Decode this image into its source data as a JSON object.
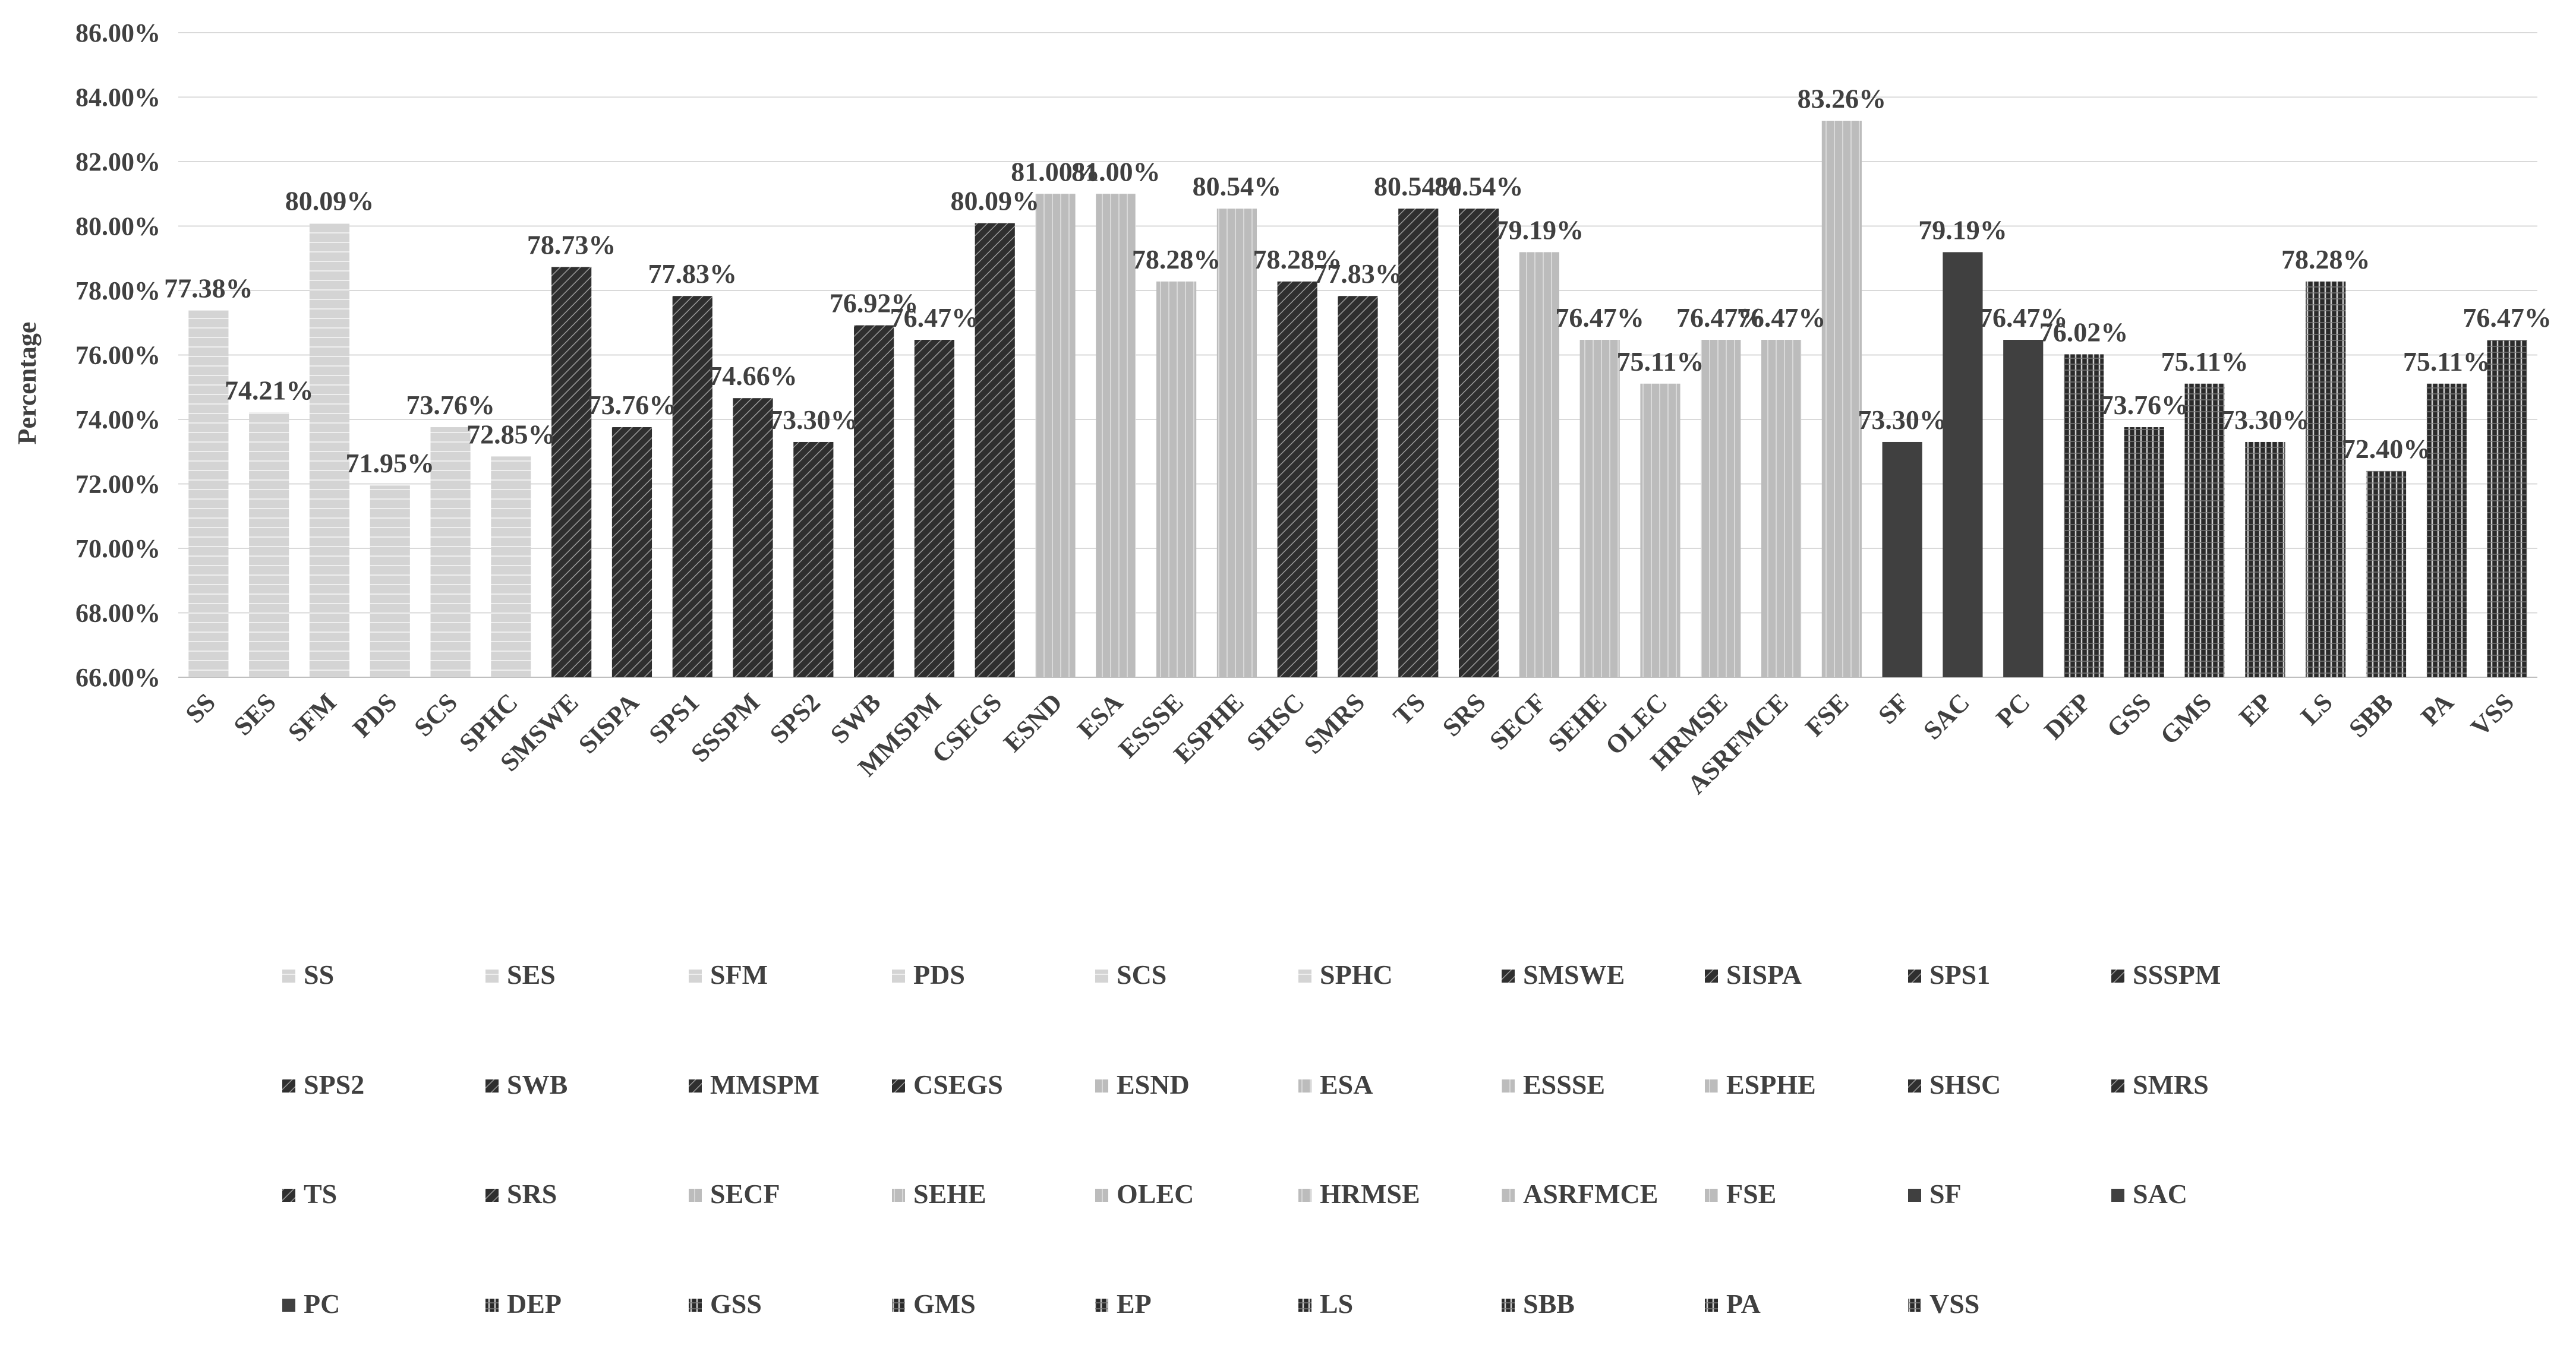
{
  "chart_data": {
    "type": "bar",
    "title": "",
    "xlabel": "",
    "ylabel": "Percentage",
    "ylim": [
      66,
      86
    ],
    "yticks": [
      "66.00%",
      "68.00%",
      "70.00%",
      "72.00%",
      "74.00%",
      "76.00%",
      "78.00%",
      "80.00%",
      "82.00%",
      "84.00%",
      "86.00%"
    ],
    "grid": true,
    "legend_position": "bottom",
    "categories": [
      "SS",
      "SES",
      "SFM",
      "PDS",
      "SCS",
      "SPHC",
      "SMSWE",
      "SISPA",
      "SPS1",
      "SSSPM",
      "SPS2",
      "SWB",
      "MMSPM",
      "CSEGS",
      "ESND",
      "ESA",
      "ESSSE",
      "ESPHE",
      "SHSC",
      "SMRS",
      "TS",
      "SRS",
      "SECF",
      "SEHE",
      "OLEC",
      "HRMSE",
      "ASRFMCE",
      "FSE",
      "SF",
      "SAC",
      "PC",
      "DEP",
      "GSS",
      "GMS",
      "EP",
      "LS",
      "SBB",
      "PA",
      "VSS"
    ],
    "values": [
      77.38,
      74.21,
      80.09,
      71.95,
      73.76,
      72.85,
      78.73,
      73.76,
      77.83,
      74.66,
      73.3,
      76.92,
      76.47,
      80.09,
      81.0,
      81.0,
      78.28,
      80.54,
      78.28,
      77.83,
      80.54,
      80.54,
      79.19,
      76.47,
      75.11,
      76.47,
      76.47,
      83.26,
      73.3,
      79.19,
      76.47,
      76.02,
      73.76,
      75.11,
      73.3,
      78.28,
      72.4,
      75.11,
      76.47
    ],
    "value_labels": [
      "77.38%",
      "74.21%",
      "80.09%",
      "71.95%",
      "73.76%",
      "72.85%",
      "78.73%",
      "73.76%",
      "77.83%",
      "74.66%",
      "73.30%",
      "76.92%",
      "76.47%",
      "80.09%",
      "81.00%",
      "81.00%",
      "78.28%",
      "80.54%",
      "78.28%",
      "77.83%",
      "80.54%",
      "80.54%",
      "79.19%",
      "76.47%",
      "75.11%",
      "76.47%",
      "76.47%",
      "83.26%",
      "73.30%",
      "79.19%",
      "76.47%",
      "76.02%",
      "73.76%",
      "75.11%",
      "73.30%",
      "78.28%",
      "72.40%",
      "75.11%",
      "76.47%"
    ],
    "groups": [
      "g1",
      "g1",
      "g1",
      "g1",
      "g1",
      "g1",
      "g2",
      "g2",
      "g2",
      "g2",
      "g2",
      "g2",
      "g2",
      "g2",
      "g3",
      "g3",
      "g3",
      "g3",
      "g2",
      "g2",
      "g2",
      "g2",
      "g3",
      "g3",
      "g3",
      "g3",
      "g3",
      "g3",
      "g4",
      "g4",
      "g4",
      "g5",
      "g5",
      "g5",
      "g5",
      "g5",
      "g5",
      "g5",
      "g5"
    ],
    "group_colors": {
      "g1": "#d4d4d4",
      "g2": "#3a3a3a",
      "g3": "#bcbcbc",
      "g4": "#404040",
      "g5": "#2e2e2e"
    },
    "legend": [
      "SS",
      "SES",
      "SFM",
      "PDS",
      "SCS",
      "SPHC",
      "SMSWE",
      "SISPA",
      "SPS1",
      "SSSPM",
      "SPS2",
      "SWB",
      "MMSPM",
      "CSEGS",
      "ESND",
      "ESA",
      "ESSSE",
      "ESPHE",
      "SHSC",
      "SMRS",
      "TS",
      "SRS",
      "SECF",
      "SEHE",
      "OLEC",
      "HRMSE",
      "ASRFMCE",
      "FSE",
      "SF",
      "SAC",
      "PC",
      "DEP",
      "GSS",
      "GMS",
      "EP",
      "LS",
      "SBB",
      "PA",
      "VSS"
    ]
  }
}
